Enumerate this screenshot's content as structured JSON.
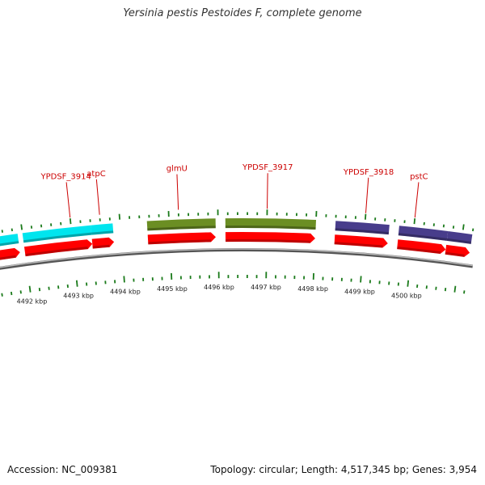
{
  "title": "Yersinia pestis Pestoides F, complete genome",
  "accession_text": "Accession: NC_009381",
  "summary_text": "Topology: circular; Length: 4,517,345 bp; Genes: 3,954",
  "colors": {
    "cds": "#ff0000",
    "cyan_feature": "#00e5ee",
    "green_feature": "#6b8e23",
    "purple_feature": "#483d8b",
    "tick": "#1a7a1a",
    "label": "#cc0000",
    "backbone": "#777777"
  },
  "axis": {
    "unit": "kbp",
    "tick_labels": [
      "4492 kbp",
      "4493 kbp",
      "4494 kbp",
      "4495 kbp",
      "4496 kbp",
      "4497 kbp",
      "4498 kbp",
      "4499 kbp",
      "4500 kbp"
    ],
    "tick_positions_kbp": [
      4492,
      4493,
      4494,
      4495,
      4496,
      4497,
      4498,
      4499,
      4500
    ]
  },
  "gene_labels": [
    {
      "name": "YPDSF_3914",
      "kbp": 4493.0
    },
    {
      "name": "atpC",
      "kbp": 4493.6
    },
    {
      "name": "glmU",
      "kbp": 4495.2
    },
    {
      "name": "YPDSF_3917",
      "kbp": 4497.0
    },
    {
      "name": "YPDSF_3918",
      "kbp": 4499.0
    },
    {
      "name": "pstC",
      "kbp": 4500.0
    }
  ],
  "features": [
    {
      "type": "cyan",
      "start": 4491.2,
      "end": 4491.9
    },
    {
      "type": "cyan",
      "start": 4492.0,
      "end": 4493.4
    },
    {
      "type": "cyan",
      "start": 4493.4,
      "end": 4493.85
    },
    {
      "type": "green",
      "start": 4494.55,
      "end": 4495.95
    },
    {
      "type": "green",
      "start": 4496.15,
      "end": 4498.0
    },
    {
      "type": "purple",
      "start": 4498.4,
      "end": 4499.5
    },
    {
      "type": "purple",
      "start": 4499.7,
      "end": 4500.7
    },
    {
      "type": "purple",
      "start": 4500.7,
      "end": 4501.2
    }
  ],
  "cds": [
    {
      "start": 4491.2,
      "end": 4491.9
    },
    {
      "start": 4492.0,
      "end": 4493.4
    },
    {
      "start": 4493.4,
      "end": 4493.85
    },
    {
      "start": 4494.55,
      "end": 4495.95
    },
    {
      "start": 4496.15,
      "end": 4498.0
    },
    {
      "start": 4498.4,
      "end": 4499.5
    },
    {
      "start": 4499.7,
      "end": 4500.7
    },
    {
      "start": 4500.7,
      "end": 4501.2
    }
  ]
}
